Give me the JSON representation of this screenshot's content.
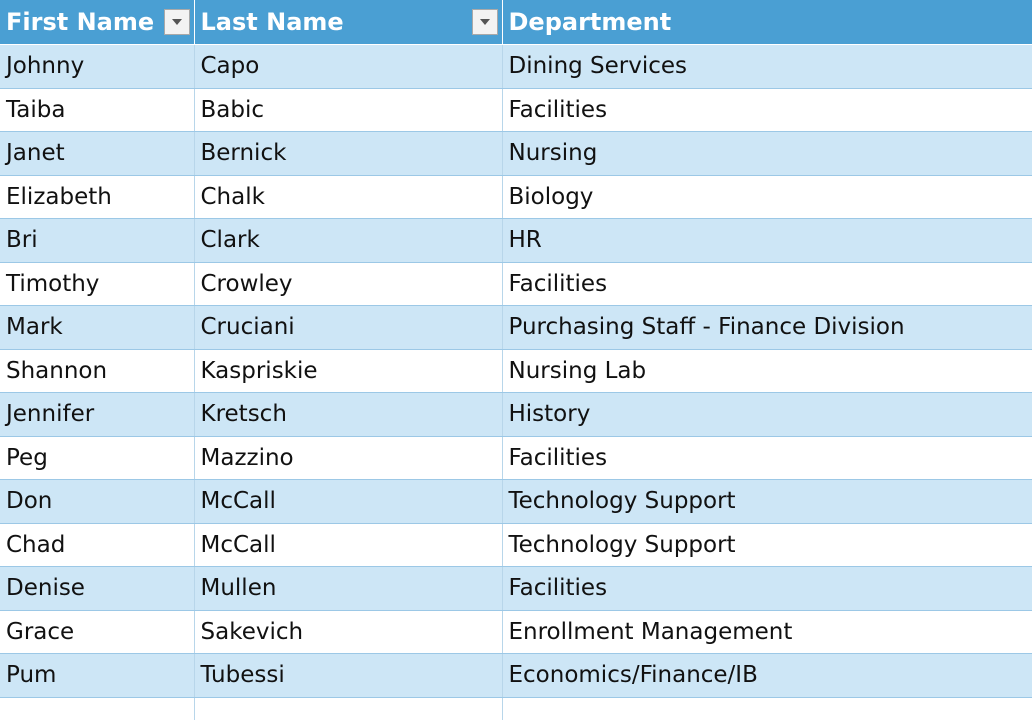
{
  "table": {
    "headers": [
      "First Name",
      "Last Name",
      "Department"
    ],
    "rows": [
      [
        "Johnny",
        "Capo",
        "Dining Services"
      ],
      [
        "Taiba",
        "Babic",
        "Facilities"
      ],
      [
        "Janet",
        "Bernick",
        "Nursing"
      ],
      [
        "Elizabeth",
        "Chalk",
        "Biology"
      ],
      [
        "Bri",
        "Clark",
        "HR"
      ],
      [
        "Timothy",
        "Crowley",
        "Facilities"
      ],
      [
        "Mark",
        "Cruciani",
        "Purchasing Staff - Finance Division"
      ],
      [
        "Shannon",
        "Kaspriskie",
        "Nursing Lab"
      ],
      [
        "Jennifer",
        "Kretsch",
        "History"
      ],
      [
        "Peg",
        "Mazzino",
        "Facilities"
      ],
      [
        "Don",
        "McCall",
        "Technology Support"
      ],
      [
        "Chad",
        "McCall",
        "Technology Support"
      ],
      [
        "Denise",
        "Mullen",
        "Facilities"
      ],
      [
        "Grace",
        "Sakevich",
        "Enrollment Management"
      ],
      [
        "Pum",
        "Tubessi",
        "Economics/Finance/IB"
      ]
    ]
  },
  "colors": {
    "header_bg": "#4a9fd3",
    "header_text": "#ffffff",
    "band_row": "#cde6f6",
    "plain_row": "#ffffff"
  },
  "icons": {
    "filter": "dropdown-arrow-icon"
  }
}
